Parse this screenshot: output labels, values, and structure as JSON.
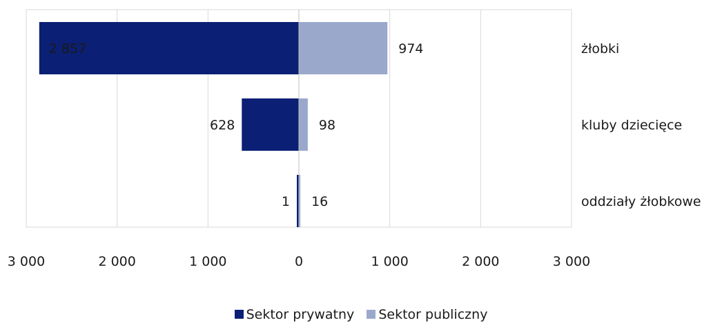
{
  "chart_data": {
    "type": "bar",
    "orientation": "horizontal-diverging",
    "categories": [
      "żłobki",
      "kluby dziecięce",
      "oddziały żłobkowe"
    ],
    "series": [
      {
        "name": "Sektor prywatny",
        "values": [
          2857,
          628,
          1
        ],
        "labels": [
          "2 857",
          "628",
          "1"
        ],
        "color": "#0b1f74"
      },
      {
        "name": "Sektor publiczny",
        "values": [
          974,
          98,
          16
        ],
        "labels": [
          "974",
          "98",
          "16"
        ],
        "color": "#9aa8cc"
      }
    ],
    "xlim": [
      -3000,
      3000
    ],
    "xticks": [
      -3000,
      -2000,
      -1000,
      0,
      1000,
      2000,
      3000
    ],
    "xtick_labels": [
      "3 000",
      "2 000",
      "1 000",
      "0",
      "1 000",
      "2 000",
      "3 000"
    ],
    "grid": true,
    "legend_position": "bottom"
  }
}
